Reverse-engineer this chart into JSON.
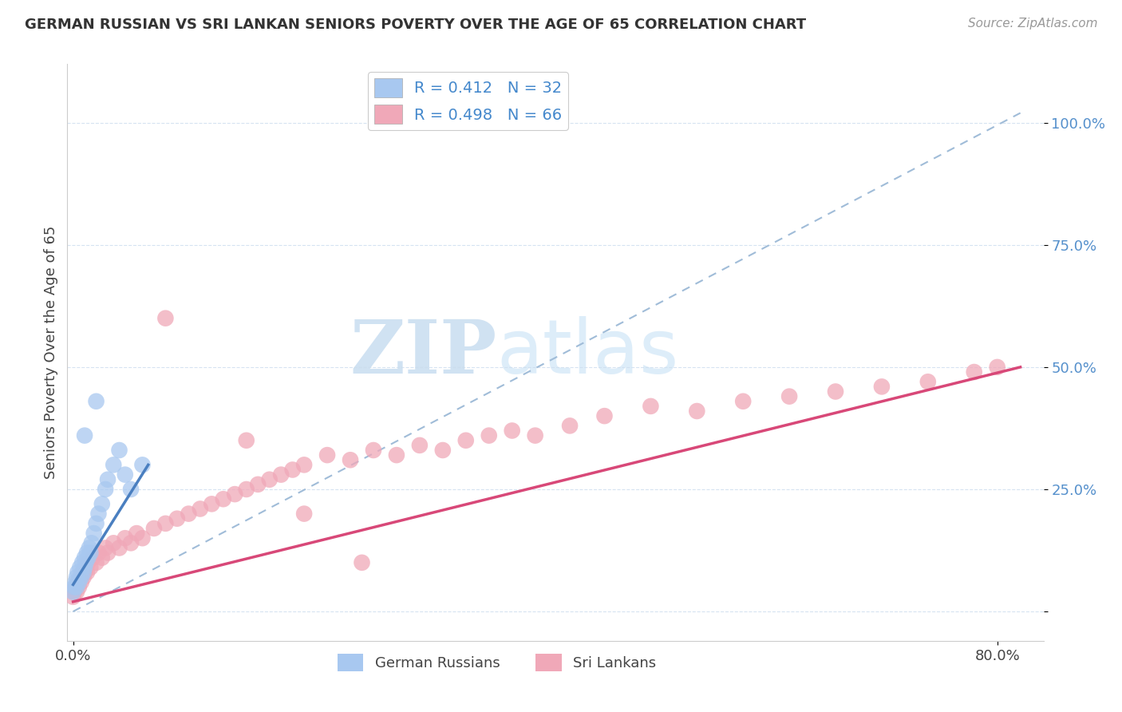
{
  "title": "GERMAN RUSSIAN VS SRI LANKAN SENIORS POVERTY OVER THE AGE OF 65 CORRELATION CHART",
  "source": "Source: ZipAtlas.com",
  "ylabel": "Seniors Poverty Over the Age of 65",
  "xlim": [
    -0.005,
    0.84
  ],
  "ylim": [
    -0.06,
    1.12
  ],
  "ytick_positions": [
    0.0,
    0.25,
    0.5,
    0.75,
    1.0
  ],
  "yticklabels": [
    "",
    "25.0%",
    "50.0%",
    "75.0%",
    "100.0%"
  ],
  "legend_r1": "R = 0.412",
  "legend_n1": "N = 32",
  "legend_r2": "R = 0.498",
  "legend_n2": "N = 66",
  "color_german": "#a8c8f0",
  "color_srilanka": "#f0a8b8",
  "color_german_line": "#4a7fc0",
  "color_srilanka_line": "#d84878",
  "color_refline": "#a0bcd8",
  "watermark_zip": "ZIP",
  "watermark_atlas": "atlas",
  "bottom_legend_german": "German Russians",
  "bottom_legend_srilanka": "Sri Lankans",
  "gr_x": [
    0.0,
    0.001,
    0.002,
    0.003,
    0.003,
    0.004,
    0.005,
    0.006,
    0.007,
    0.008,
    0.009,
    0.01,
    0.01,
    0.011,
    0.012,
    0.013,
    0.014,
    0.015,
    0.016,
    0.018,
    0.02,
    0.022,
    0.025,
    0.028,
    0.03,
    0.035,
    0.04,
    0.045,
    0.05,
    0.06,
    0.02,
    0.01
  ],
  "gr_y": [
    0.04,
    0.05,
    0.06,
    0.07,
    0.05,
    0.08,
    0.06,
    0.09,
    0.07,
    0.1,
    0.08,
    0.09,
    0.11,
    0.1,
    0.12,
    0.11,
    0.13,
    0.12,
    0.14,
    0.16,
    0.18,
    0.2,
    0.22,
    0.25,
    0.27,
    0.3,
    0.33,
    0.28,
    0.25,
    0.3,
    0.43,
    0.36
  ],
  "sl_x": [
    0.0,
    0.001,
    0.002,
    0.003,
    0.004,
    0.005,
    0.006,
    0.007,
    0.008,
    0.009,
    0.01,
    0.011,
    0.012,
    0.013,
    0.015,
    0.017,
    0.02,
    0.022,
    0.025,
    0.028,
    0.03,
    0.035,
    0.04,
    0.045,
    0.05,
    0.055,
    0.06,
    0.07,
    0.08,
    0.09,
    0.1,
    0.11,
    0.12,
    0.13,
    0.14,
    0.15,
    0.16,
    0.17,
    0.18,
    0.19,
    0.2,
    0.22,
    0.24,
    0.26,
    0.28,
    0.3,
    0.32,
    0.34,
    0.36,
    0.38,
    0.4,
    0.43,
    0.46,
    0.5,
    0.54,
    0.58,
    0.62,
    0.66,
    0.7,
    0.74,
    0.78,
    0.8,
    0.08,
    0.15,
    0.2,
    0.25
  ],
  "sl_y": [
    0.03,
    0.04,
    0.05,
    0.04,
    0.06,
    0.05,
    0.07,
    0.06,
    0.08,
    0.07,
    0.08,
    0.09,
    0.08,
    0.1,
    0.09,
    0.11,
    0.1,
    0.12,
    0.11,
    0.13,
    0.12,
    0.14,
    0.13,
    0.15,
    0.14,
    0.16,
    0.15,
    0.17,
    0.18,
    0.19,
    0.2,
    0.21,
    0.22,
    0.23,
    0.24,
    0.25,
    0.26,
    0.27,
    0.28,
    0.29,
    0.3,
    0.32,
    0.31,
    0.33,
    0.32,
    0.34,
    0.33,
    0.35,
    0.36,
    0.37,
    0.36,
    0.38,
    0.4,
    0.42,
    0.41,
    0.43,
    0.44,
    0.45,
    0.46,
    0.47,
    0.49,
    0.5,
    0.6,
    0.35,
    0.2,
    0.1
  ],
  "gr_line_x": [
    0.0,
    0.065
  ],
  "gr_line_y": [
    0.055,
    0.3
  ],
  "sl_line_x": [
    0.0,
    0.82
  ],
  "sl_line_y": [
    0.02,
    0.5
  ],
  "ref_line_x": [
    0.0,
    0.82
  ],
  "ref_line_y": [
    0.0,
    1.02
  ]
}
